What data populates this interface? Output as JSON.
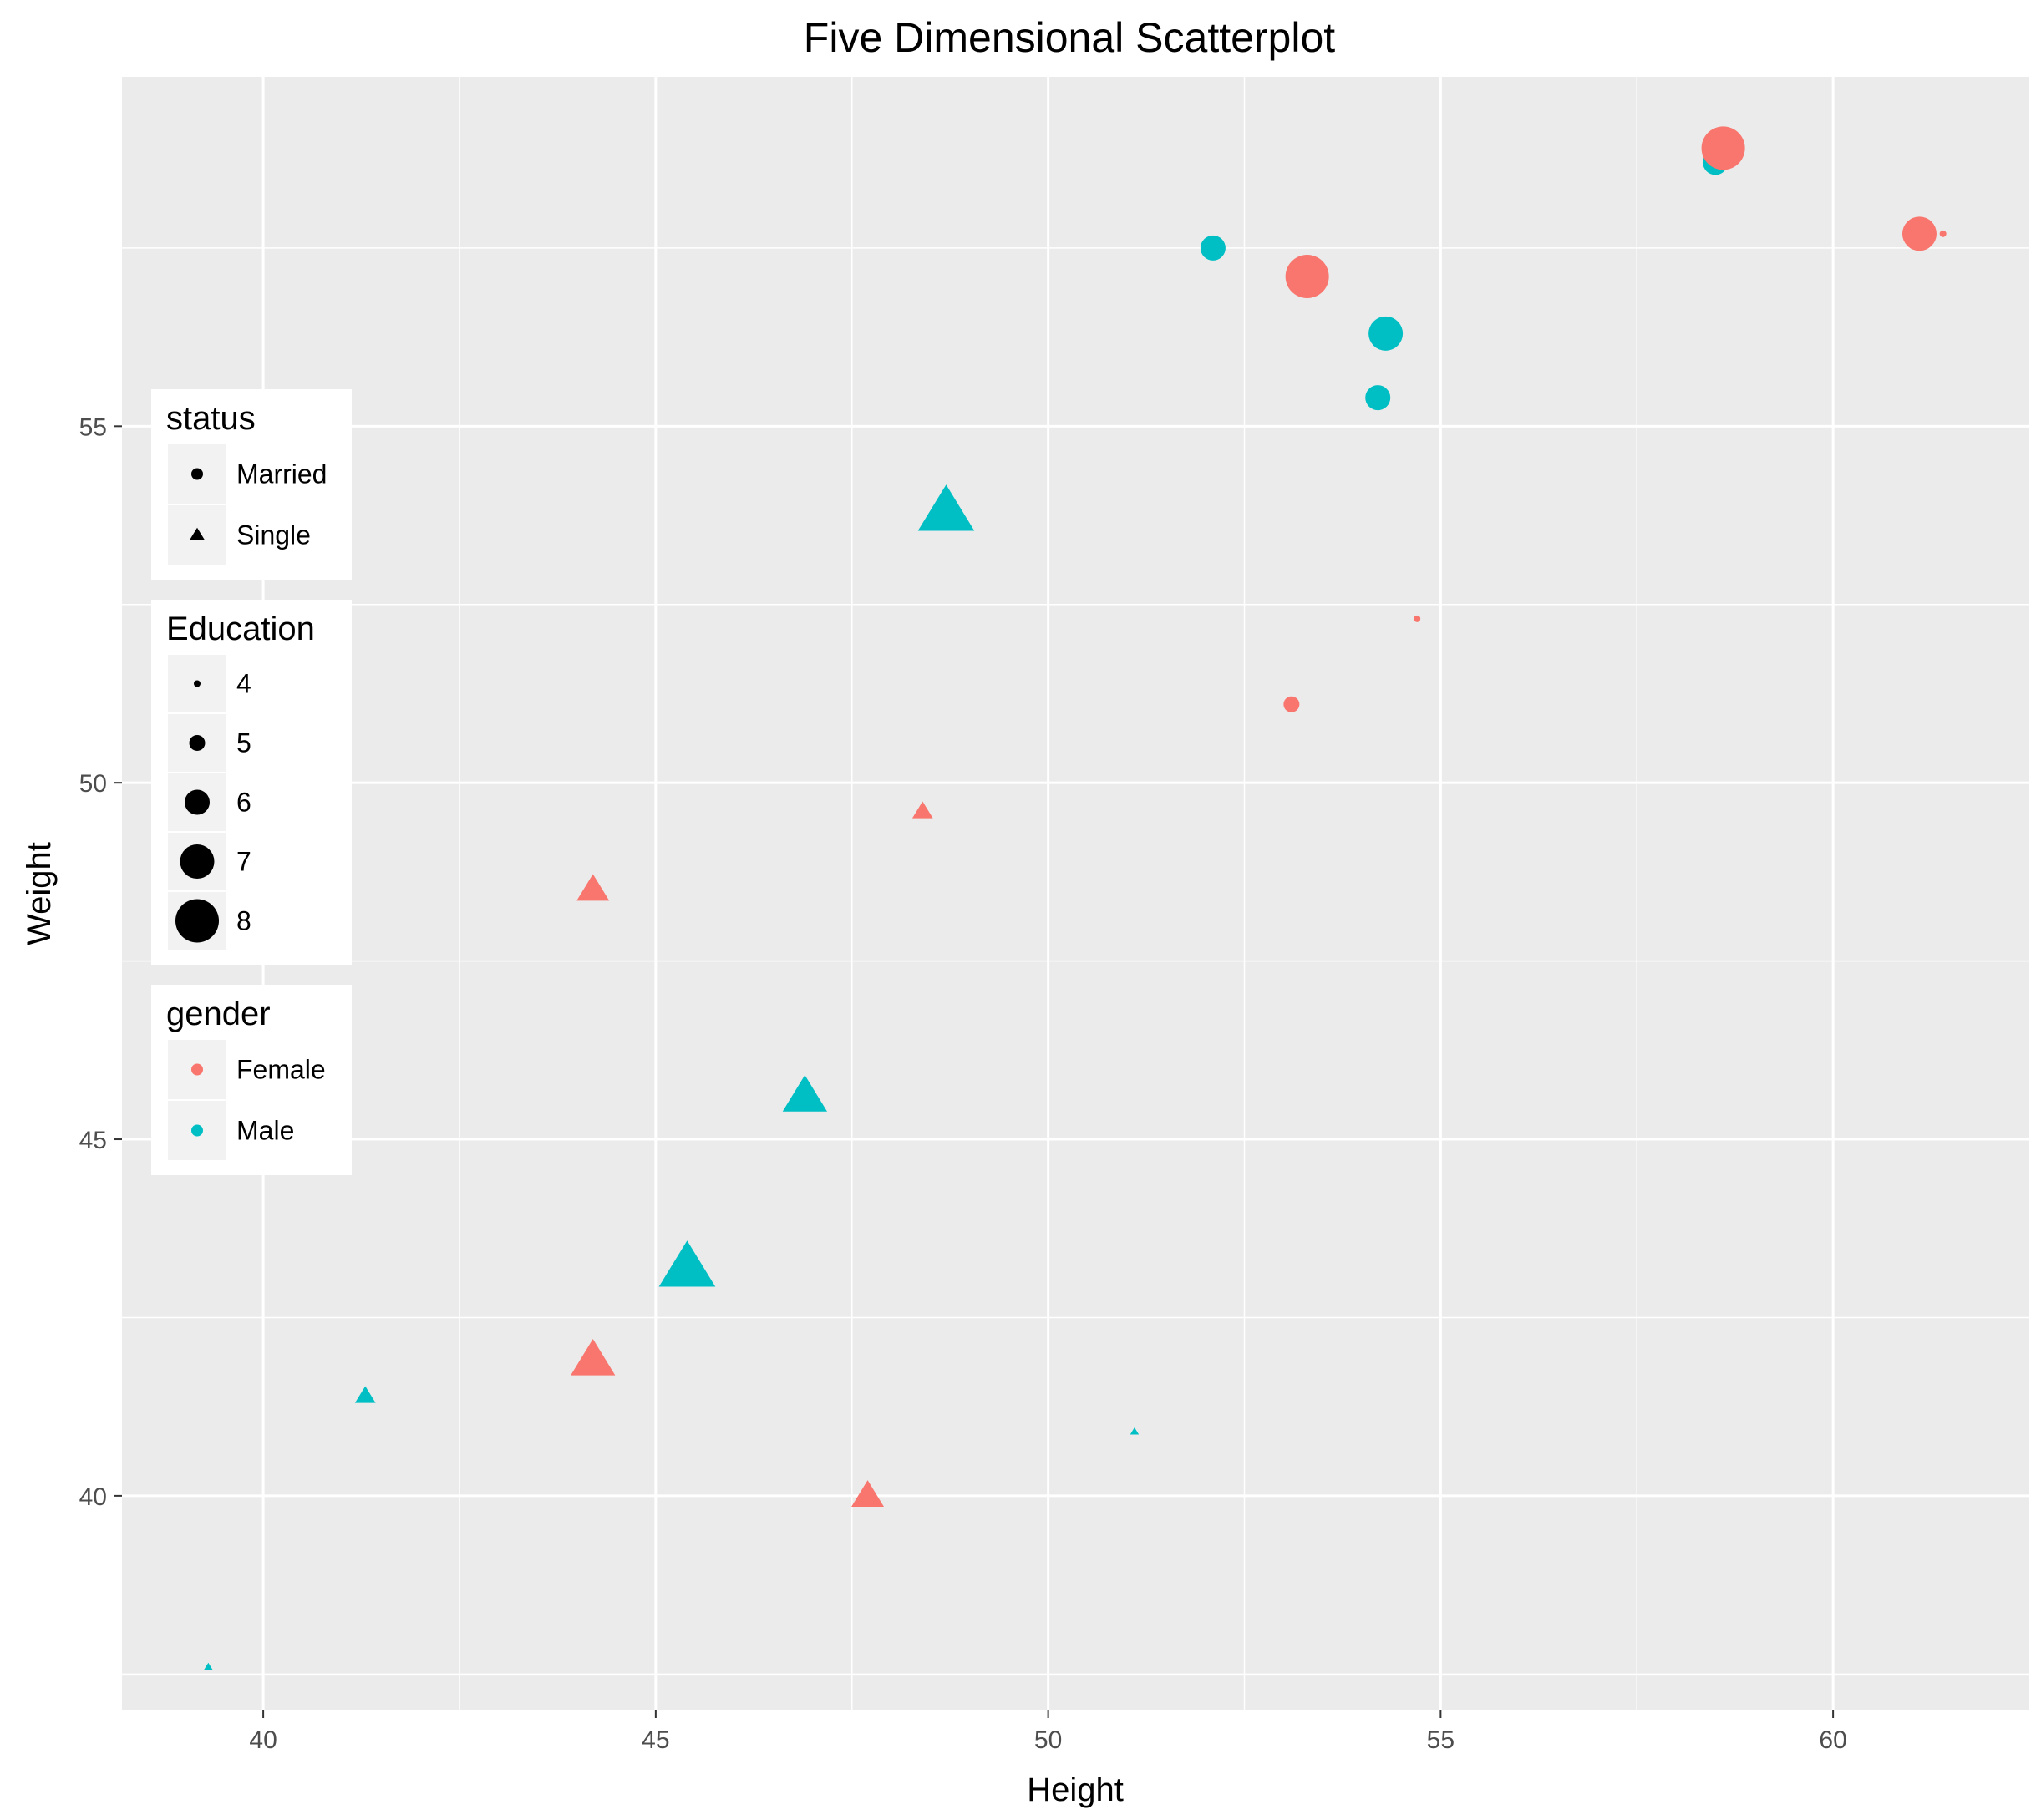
{
  "chart_data": {
    "type": "scatter",
    "title": "Five Dimensional Scatterplot",
    "xlabel": "Height",
    "ylabel": "Weight",
    "xlim": [
      38.2,
      62.5
    ],
    "ylim": [
      37.0,
      59.9
    ],
    "x_ticks": [
      40,
      45,
      50,
      55,
      60
    ],
    "y_ticks": [
      40,
      45,
      50,
      55
    ],
    "grid": true,
    "colors": {
      "Female": "#F8766D",
      "Male": "#00BFC4"
    },
    "shapes": {
      "Married": "circle",
      "Single": "triangle"
    },
    "legends": [
      {
        "title": "status",
        "items": [
          "Married",
          "Single"
        ]
      },
      {
        "title": "Education",
        "items": [
          "4",
          "5",
          "6",
          "7",
          "8"
        ]
      },
      {
        "title": "gender",
        "items": [
          "Female",
          "Male"
        ]
      }
    ],
    "legend_position": "left",
    "points": [
      {
        "x": 58.5,
        "y": 58.7,
        "gender": "Male",
        "status": "Married",
        "education": 6
      },
      {
        "x": 58.6,
        "y": 58.9,
        "gender": "Female",
        "status": "Married",
        "education": 8
      },
      {
        "x": 61.4,
        "y": 57.7,
        "gender": "Female",
        "status": "Married",
        "education": 4
      },
      {
        "x": 61.1,
        "y": 57.7,
        "gender": "Female",
        "status": "Married",
        "education": 7
      },
      {
        "x": 52.1,
        "y": 57.5,
        "gender": "Male",
        "status": "Married",
        "education": 6
      },
      {
        "x": 53.3,
        "y": 57.1,
        "gender": "Female",
        "status": "Married",
        "education": 8
      },
      {
        "x": 54.3,
        "y": 56.3,
        "gender": "Male",
        "status": "Married",
        "education": 7
      },
      {
        "x": 54.2,
        "y": 55.4,
        "gender": "Male",
        "status": "Married",
        "education": 6
      },
      {
        "x": 54.7,
        "y": 52.3,
        "gender": "Female",
        "status": "Married",
        "education": 4
      },
      {
        "x": 53.1,
        "y": 51.1,
        "gender": "Female",
        "status": "Married",
        "education": 5
      },
      {
        "x": 48.7,
        "y": 53.8,
        "gender": "Male",
        "status": "Single",
        "education": 8
      },
      {
        "x": 48.4,
        "y": 49.6,
        "gender": "Female",
        "status": "Single",
        "education": 5
      },
      {
        "x": 44.2,
        "y": 48.5,
        "gender": "Female",
        "status": "Single",
        "education": 6
      },
      {
        "x": 46.9,
        "y": 45.6,
        "gender": "Male",
        "status": "Single",
        "education": 7
      },
      {
        "x": 45.4,
        "y": 43.2,
        "gender": "Male",
        "status": "Single",
        "education": 8
      },
      {
        "x": 44.2,
        "y": 41.9,
        "gender": "Female",
        "status": "Single",
        "education": 7
      },
      {
        "x": 41.3,
        "y": 41.4,
        "gender": "Male",
        "status": "Single",
        "education": 5
      },
      {
        "x": 51.1,
        "y": 40.9,
        "gender": "Male",
        "status": "Single",
        "education": 4
      },
      {
        "x": 47.7,
        "y": 40.0,
        "gender": "Female",
        "status": "Single",
        "education": 6
      },
      {
        "x": 39.3,
        "y": 37.6,
        "gender": "Male",
        "status": "Single",
        "education": 4
      }
    ]
  }
}
